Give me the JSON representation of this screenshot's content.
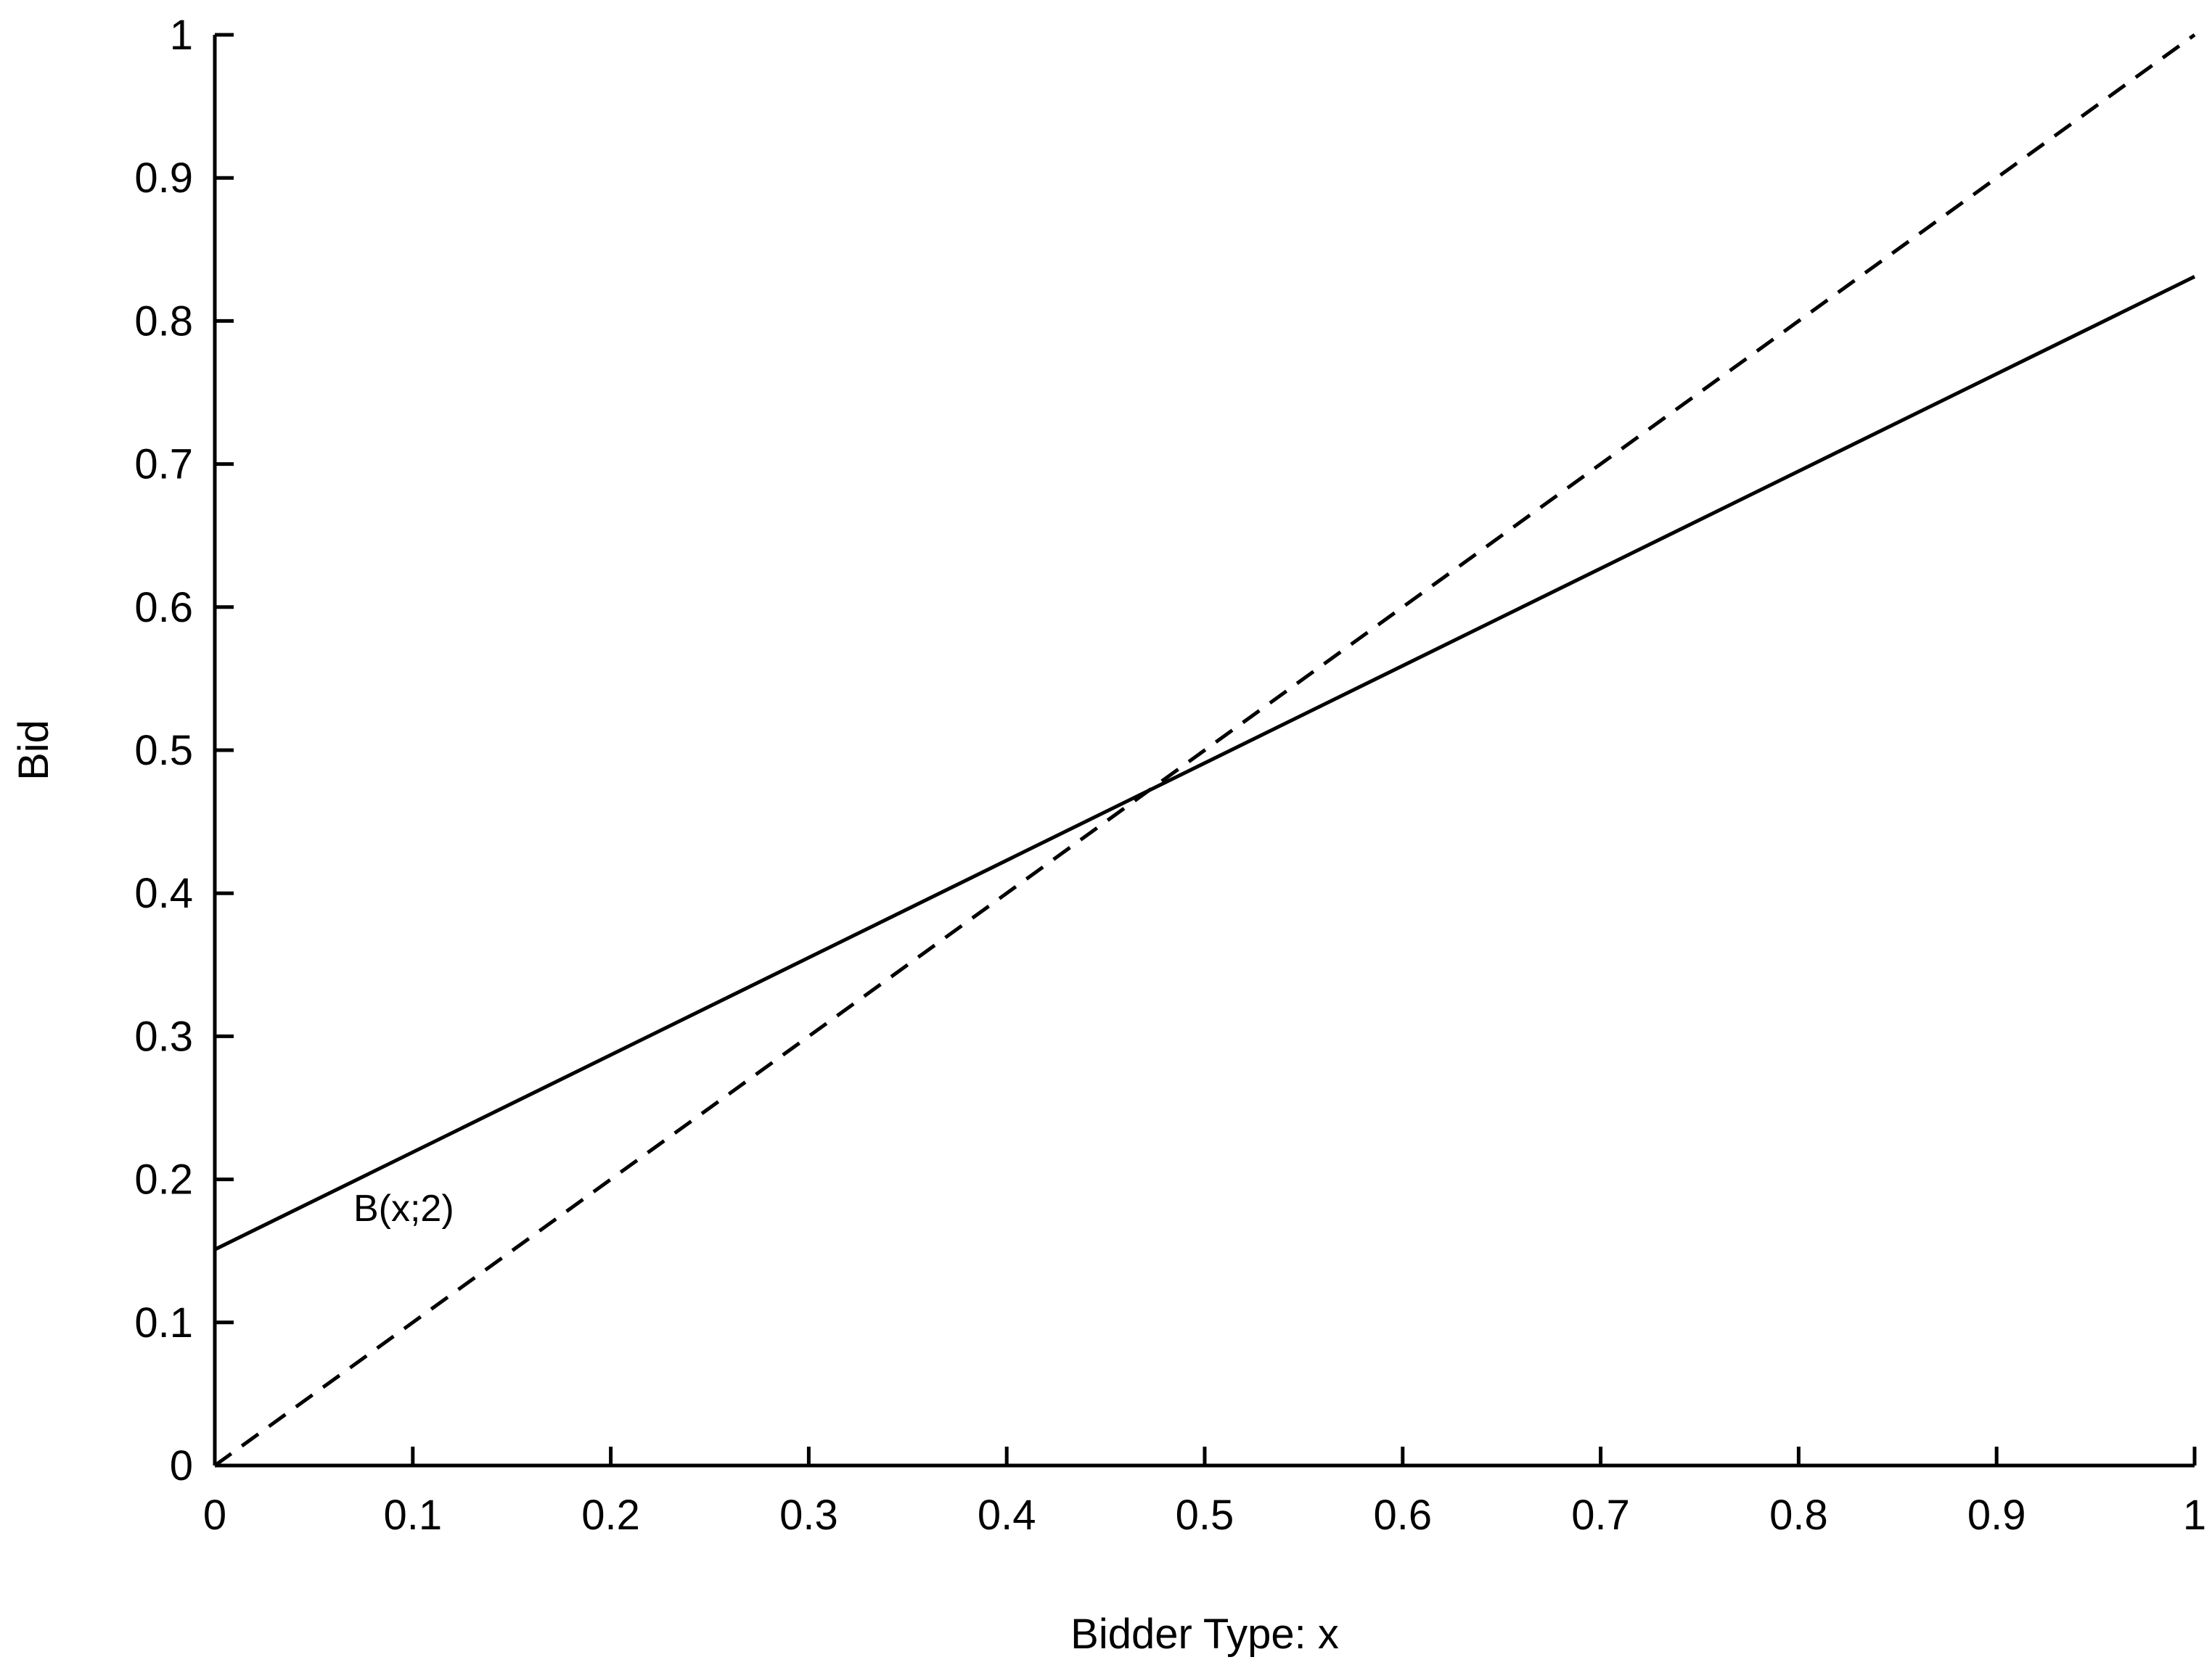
{
  "chart_data": {
    "type": "line",
    "title": "",
    "xlabel": "Bidder Type: x",
    "ylabel": "Bid",
    "xlim": [
      0,
      1
    ],
    "ylim": [
      0,
      1
    ],
    "grid": false,
    "legend": "none",
    "x_ticks": [
      {
        "value": 0,
        "label": "0"
      },
      {
        "value": 0.1,
        "label": "0.1"
      },
      {
        "value": 0.2,
        "label": "0.2"
      },
      {
        "value": 0.3,
        "label": "0.3"
      },
      {
        "value": 0.4,
        "label": "0.4"
      },
      {
        "value": 0.5,
        "label": "0.5"
      },
      {
        "value": 0.6,
        "label": "0.6"
      },
      {
        "value": 0.7,
        "label": "0.7"
      },
      {
        "value": 0.8,
        "label": "0.8"
      },
      {
        "value": 0.9,
        "label": "0.9"
      },
      {
        "value": 1,
        "label": "1"
      }
    ],
    "y_ticks": [
      {
        "value": 0,
        "label": "0"
      },
      {
        "value": 0.1,
        "label": "0.1"
      },
      {
        "value": 0.2,
        "label": "0.2"
      },
      {
        "value": 0.3,
        "label": "0.3"
      },
      {
        "value": 0.4,
        "label": "0.4"
      },
      {
        "value": 0.5,
        "label": "0.5"
      },
      {
        "value": 0.6,
        "label": "0.6"
      },
      {
        "value": 0.7,
        "label": "0.7"
      },
      {
        "value": 0.8,
        "label": "0.8"
      },
      {
        "value": 0.9,
        "label": "0.9"
      },
      {
        "value": 1,
        "label": "1"
      }
    ],
    "series": [
      {
        "style": "solid",
        "color": "#000000",
        "x": [
          0,
          1
        ],
        "y": [
          0.151,
          0.831
        ]
      },
      {
        "style": "dashed",
        "color": "#000000",
        "x": [
          0,
          1
        ],
        "y": [
          0,
          1
        ]
      }
    ],
    "annotations": [
      {
        "text": "B(x;2)",
        "x": 0.07,
        "y": 0.18
      }
    ]
  }
}
